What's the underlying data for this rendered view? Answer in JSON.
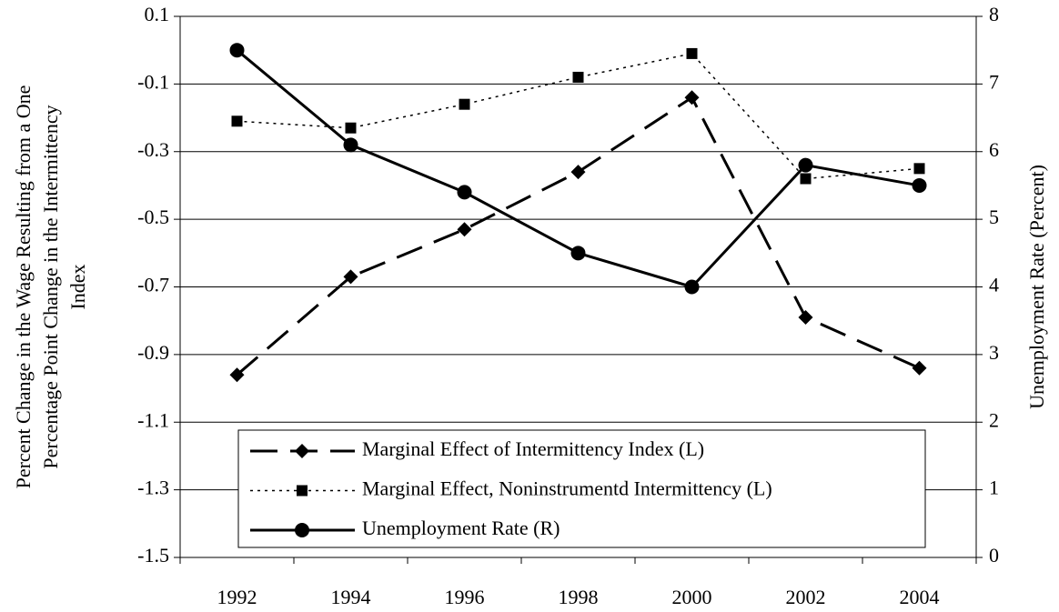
{
  "chart_data": {
    "type": "line",
    "ylabel": [
      "Percent Change in the Wage Resulting from a One",
      "Percentage Point Change in the Intermittency",
      "Index"
    ],
    "y2label": "Unemployment Rate (Percent)",
    "categories": [
      "1992",
      "1994",
      "1996",
      "1998",
      "2000",
      "2002",
      "2004"
    ],
    "series": [
      {
        "name": "Marginal Effect of Intermittency Index (L)",
        "color": "#000000",
        "line_style": "dashed",
        "marker": "diamond",
        "values": [
          -0.96,
          -0.67,
          -0.53,
          -0.36,
          -0.14,
          -0.79,
          -0.94
        ]
      },
      {
        "name": "Marginal Effect, Noninstrumentd Intermittency (L)",
        "color": "#000000",
        "line_style": "dotted",
        "marker": "square",
        "values": [
          -0.21,
          -0.23,
          -0.16,
          -0.08,
          -0.01,
          -0.38,
          -0.35
        ]
      },
      {
        "name": "Unemployment Rate (R)",
        "color": "#000000",
        "line_style": "solid",
        "marker": "circle",
        "axis": "y2",
        "values": [
          7.5,
          6.1,
          5.4,
          4.5,
          4.0,
          5.8,
          5.5
        ]
      }
    ],
    "ylim": [
      -1.5,
      0.1
    ],
    "yticks": [
      0.1,
      -0.1,
      -0.3,
      -0.5,
      -0.7,
      -0.9,
      -1.1,
      -1.3,
      -1.5
    ],
    "y2lim": [
      0,
      8
    ],
    "y2ticks": [
      0,
      1,
      2,
      3,
      4,
      5,
      6,
      7,
      8
    ],
    "grid": true,
    "legend": "bottom"
  }
}
